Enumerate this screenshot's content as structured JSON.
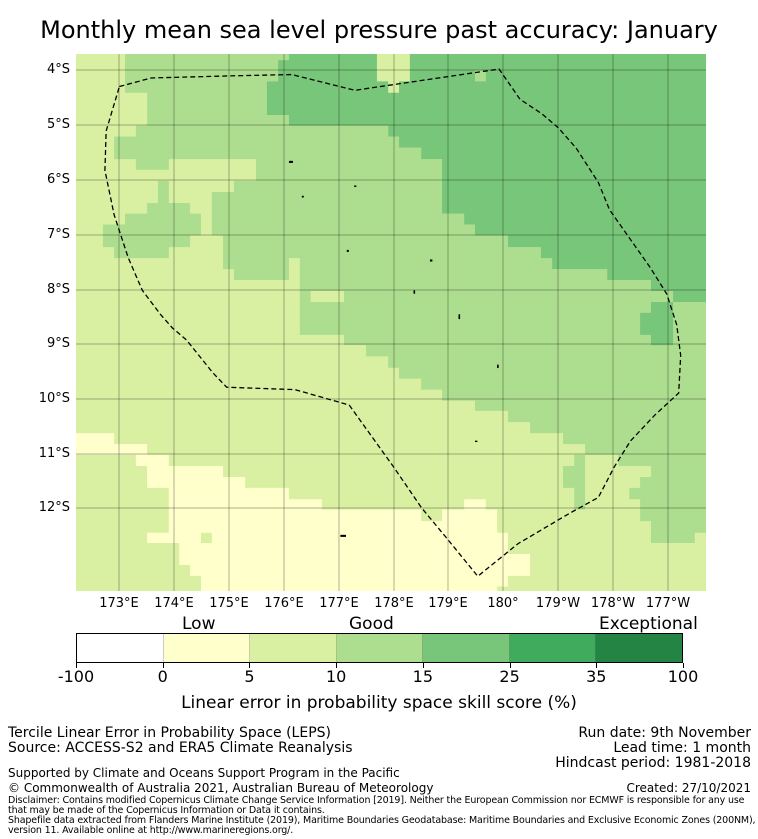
{
  "title": "Monthly mean sea level pressure past accuracy: January",
  "map": {
    "lon_labels": [
      "173°E",
      "174°E",
      "175°E",
      "176°E",
      "177°E",
      "178°E",
      "179°E",
      "180°",
      "179°W",
      "178°W",
      "177°W"
    ],
    "lat_labels": [
      "4°S",
      "5°S",
      "6°S",
      "7°S",
      "8°S",
      "9°S",
      "10°S",
      "11°S",
      "12°S"
    ],
    "colors": {
      "c0": "#ffffff",
      "c1": "#ffffcc",
      "c2": "#d9f0a3",
      "c3": "#addd8e",
      "c4": "#78c679",
      "c5": "#41ab5d",
      "c6": "#238443"
    },
    "boundary": "EEZ dashed outline"
  },
  "legend": {
    "categories": {
      "low": "Low",
      "good": "Good",
      "exceptional": "Exceptional"
    },
    "ticks": [
      "-100",
      "0",
      "5",
      "10",
      "15",
      "25",
      "35",
      "100"
    ],
    "colors": [
      "#ffffff",
      "#ffffcc",
      "#d9f0a3",
      "#addd8e",
      "#78c679",
      "#41ab5d",
      "#238443"
    ],
    "label": "Linear error in probability space skill score (%)"
  },
  "footer": {
    "method": "Tercile Linear Error in Probability Space (LEPS)",
    "source": "Source: ACCESS-S2 and ERA5 Climate Reanalysis",
    "run_date": "Run date: 9th November",
    "lead_time": "Lead time: 1 month",
    "hindcast": "Hindcast period: 1981-2018",
    "supported": "Supported by Climate and Oceans Support Program in the Pacific",
    "copyright": "© Commonwealth of Australia 2021, Australian Bureau of Meteorology",
    "created": "Created: 27/10/2021",
    "disclaimer1": "Disclaimer: Contains modified Copernicus Climate Change Service Information [2019]. Neither the European Commission nor ECMWF is responsible for any use",
    "disclaimer2": "that may be made of the Copernicus Information or Data it contains.",
    "shapefile1": "Shapefile data extracted from Flanders Marine Institute (2019), Maritime Boundaries Geodatabase: Maritime Boundaries and Exclusive Economic Zones (200NM),",
    "shapefile2": "version 11. Available online at http://www.marineregions.org/."
  }
}
